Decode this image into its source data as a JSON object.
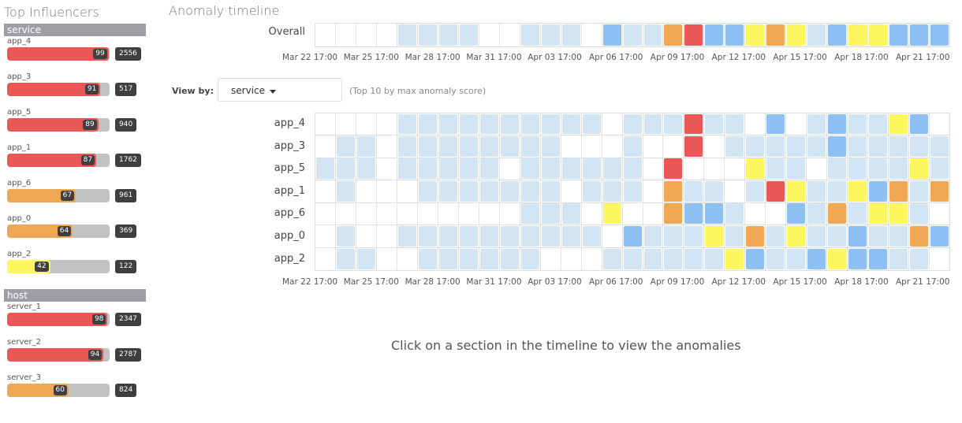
{
  "colors": {
    "critical": "#e95757",
    "major": "#efa753",
    "minor": "#fdf65e",
    "warning": "#8fc0f3",
    "low": "#d2e5f5",
    "none": "#ffffff",
    "bar_track": "#c2c2c2",
    "badge": "#3f3f3f"
  },
  "influencers": {
    "title": "Top Influencers",
    "groups": [
      {
        "name": "service",
        "items": [
          {
            "name": "app_4",
            "score": 99,
            "count": "2556",
            "level": "critical"
          },
          {
            "name": "app_3",
            "score": 91,
            "count": "517",
            "level": "critical"
          },
          {
            "name": "app_5",
            "score": 89,
            "count": "940",
            "level": "critical"
          },
          {
            "name": "app_1",
            "score": 87,
            "count": "1762",
            "level": "critical"
          },
          {
            "name": "app_6",
            "score": 67,
            "count": "961",
            "level": "major"
          },
          {
            "name": "app_0",
            "score": 64,
            "count": "369",
            "level": "major"
          },
          {
            "name": "app_2",
            "score": 42,
            "count": "122",
            "level": "minor"
          }
        ]
      },
      {
        "name": "host",
        "items": [
          {
            "name": "server_1",
            "score": 98,
            "count": "2347",
            "level": "critical"
          },
          {
            "name": "server_2",
            "score": 94,
            "count": "2787",
            "level": "critical"
          },
          {
            "name": "server_3",
            "score": 60,
            "count": "824",
            "level": "major"
          }
        ]
      }
    ]
  },
  "timeline": {
    "title": "Anomaly timeline",
    "overall": {
      "label": "Overall",
      "cells": [
        0,
        0,
        0,
        0,
        1,
        1,
        1,
        1,
        0,
        0,
        1,
        1,
        1,
        0,
        2,
        1,
        1,
        4,
        5,
        2,
        2,
        3,
        4,
        3,
        1,
        2,
        3,
        3,
        2,
        2,
        2
      ]
    },
    "time_labels": [
      "Mar 22 17:00",
      "Mar 25 17:00",
      "Mar 28 17:00",
      "Mar 31 17:00",
      "Apr 03 17:00",
      "Apr 06 17:00",
      "Apr 09 17:00",
      "Apr 12 17:00",
      "Apr 15 17:00",
      "Apr 18 17:00",
      "Apr 21 17:00"
    ],
    "view_by": {
      "label": "View by:",
      "value": "service",
      "hint": "(Top 10 by max anomaly score)"
    },
    "swimlanes": [
      {
        "label": "app_4",
        "cells": [
          0,
          0,
          0,
          0,
          1,
          1,
          1,
          1,
          1,
          1,
          1,
          1,
          1,
          1,
          0,
          1,
          1,
          1,
          5,
          1,
          1,
          0,
          2,
          0,
          1,
          2,
          1,
          1,
          3,
          2,
          0
        ]
      },
      {
        "label": "app_3",
        "cells": [
          0,
          1,
          1,
          0,
          1,
          1,
          1,
          1,
          1,
          1,
          1,
          1,
          0,
          0,
          0,
          1,
          0,
          0,
          5,
          0,
          1,
          1,
          1,
          1,
          1,
          2,
          1,
          1,
          1,
          1,
          1
        ]
      },
      {
        "label": "app_5",
        "cells": [
          1,
          1,
          1,
          0,
          1,
          1,
          1,
          1,
          1,
          0,
          1,
          1,
          1,
          1,
          1,
          1,
          0,
          5,
          0,
          0,
          0,
          3,
          1,
          1,
          0,
          1,
          1,
          1,
          1,
          3,
          1
        ]
      },
      {
        "label": "app_1",
        "cells": [
          0,
          1,
          0,
          0,
          0,
          1,
          1,
          1,
          1,
          1,
          1,
          1,
          0,
          1,
          1,
          1,
          0,
          4,
          1,
          1,
          0,
          1,
          5,
          3,
          1,
          1,
          3,
          2,
          4,
          1,
          4
        ]
      },
      {
        "label": "app_6",
        "cells": [
          0,
          0,
          0,
          0,
          0,
          0,
          0,
          0,
          0,
          0,
          1,
          1,
          1,
          0,
          3,
          0,
          0,
          4,
          2,
          2,
          1,
          0,
          0,
          2,
          1,
          4,
          1,
          3,
          3,
          1,
          0
        ]
      },
      {
        "label": "app_0",
        "cells": [
          0,
          1,
          0,
          0,
          1,
          1,
          1,
          1,
          1,
          1,
          1,
          1,
          1,
          1,
          0,
          2,
          1,
          1,
          1,
          3,
          1,
          4,
          1,
          3,
          1,
          1,
          2,
          1,
          1,
          4,
          2
        ]
      },
      {
        "label": "app_2",
        "cells": [
          0,
          1,
          1,
          0,
          0,
          1,
          1,
          1,
          1,
          1,
          1,
          0,
          0,
          0,
          1,
          1,
          1,
          1,
          1,
          1,
          3,
          2,
          1,
          1,
          2,
          3,
          2,
          2,
          1,
          1,
          0
        ]
      }
    ],
    "empty_message": "Click on a section in the timeline to view the anomalies"
  }
}
